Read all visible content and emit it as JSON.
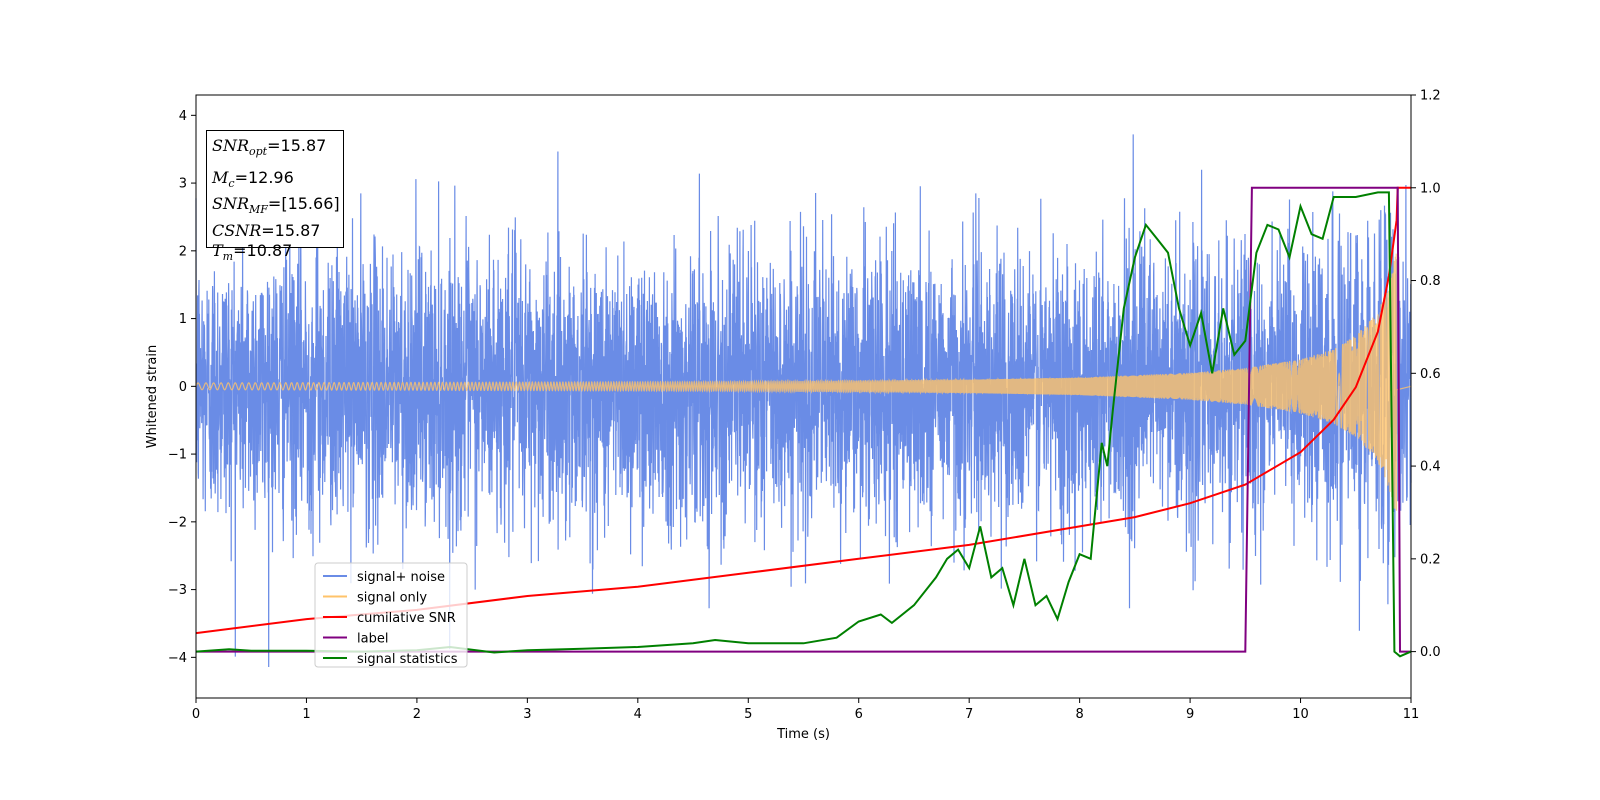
{
  "chart_data": {
    "type": "line",
    "xlabel": "Time (s)",
    "ylabel": "Whitened strain",
    "xlim": [
      0,
      11
    ],
    "ylim": [
      -4.6,
      4.3
    ],
    "y2lim": [
      -0.1,
      1.2
    ],
    "xticks": [
      "0",
      "1",
      "2",
      "3",
      "4",
      "5",
      "6",
      "7",
      "8",
      "9",
      "10",
      "11"
    ],
    "yticks": [
      "−4",
      "−3",
      "−2",
      "−1",
      "0",
      "1",
      "2",
      "3",
      "4"
    ],
    "y2ticks": [
      "0.0",
      "0.2",
      "0.4",
      "0.6",
      "0.8",
      "1.0",
      "1.2"
    ],
    "legend_position": "lower-left",
    "colors": {
      "signal_noise": "#6a8ce6",
      "signal_only": "#ffc36a",
      "cumulative_snr": "#ff0000",
      "label": "#800080",
      "signal_statistics": "#008000"
    },
    "series": [
      {
        "name": "signal+ noise",
        "axis": "left",
        "description_values": {
          "mean": 0,
          "std": 1.0,
          "approx_range": [
            -4.2,
            3.9
          ]
        }
      },
      {
        "name": "signal only",
        "axis": "left",
        "envelope": {
          "x": [
            0,
            5,
            7,
            8,
            9,
            9.5,
            10,
            10.3,
            10.5,
            10.7,
            10.8,
            10.87
          ],
          "amplitude": [
            0.05,
            0.07,
            0.1,
            0.13,
            0.2,
            0.27,
            0.4,
            0.55,
            0.75,
            1.1,
            1.5,
            2.0
          ]
        }
      },
      {
        "name": "cumilative SNR",
        "axis": "right",
        "x": [
          0,
          1,
          2,
          3,
          4,
          5,
          6,
          7,
          8,
          8.5,
          9,
          9.5,
          10,
          10.3,
          10.5,
          10.7,
          10.8,
          10.87,
          10.88,
          11
        ],
        "values": [
          0.04,
          0.07,
          0.09,
          0.12,
          0.14,
          0.17,
          0.2,
          0.23,
          0.27,
          0.29,
          0.32,
          0.36,
          0.43,
          0.5,
          0.57,
          0.69,
          0.81,
          0.93,
          1.0,
          1.0
        ]
      },
      {
        "name": "label",
        "axis": "right",
        "x": [
          0,
          9.5,
          9.56,
          10.88,
          10.9,
          11
        ],
        "values": [
          0,
          0,
          1,
          1,
          0,
          0
        ]
      },
      {
        "name": "signal statistics",
        "axis": "right",
        "x": [
          0,
          0.3,
          0.5,
          1,
          1.5,
          2,
          2.3,
          2.7,
          3,
          3.5,
          4,
          4.5,
          4.7,
          5,
          5.5,
          5.8,
          6,
          6.2,
          6.3,
          6.5,
          6.7,
          6.8,
          6.9,
          7.0,
          7.1,
          7.2,
          7.3,
          7.4,
          7.5,
          7.6,
          7.7,
          7.8,
          7.9,
          8.0,
          8.1,
          8.2,
          8.25,
          8.3,
          8.4,
          8.5,
          8.6,
          8.7,
          8.8,
          8.9,
          9.0,
          9.1,
          9.2,
          9.3,
          9.4,
          9.5,
          9.6,
          9.7,
          9.8,
          9.9,
          10.0,
          10.1,
          10.2,
          10.3,
          10.5,
          10.7,
          10.8,
          10.85,
          10.9,
          11
        ],
        "values": [
          0,
          0.005,
          0.002,
          0.002,
          0,
          0.003,
          0.01,
          -0.002,
          0.003,
          0.006,
          0.01,
          0.018,
          0.025,
          0.018,
          0.018,
          0.03,
          0.065,
          0.08,
          0.062,
          0.1,
          0.16,
          0.2,
          0.22,
          0.18,
          0.27,
          0.16,
          0.18,
          0.1,
          0.2,
          0.1,
          0.12,
          0.07,
          0.15,
          0.21,
          0.2,
          0.45,
          0.4,
          0.52,
          0.74,
          0.85,
          0.92,
          0.89,
          0.86,
          0.74,
          0.66,
          0.73,
          0.6,
          0.74,
          0.64,
          0.67,
          0.86,
          0.92,
          0.91,
          0.85,
          0.96,
          0.9,
          0.89,
          0.98,
          0.98,
          0.99,
          0.99,
          0.0,
          -0.01,
          0.0
        ]
      }
    ],
    "annotation_box": {
      "snr_opt": "15.87",
      "mc": "12.96",
      "snr_mf": "[15.66]",
      "csnr": "15.87",
      "tm": "10.87"
    }
  }
}
